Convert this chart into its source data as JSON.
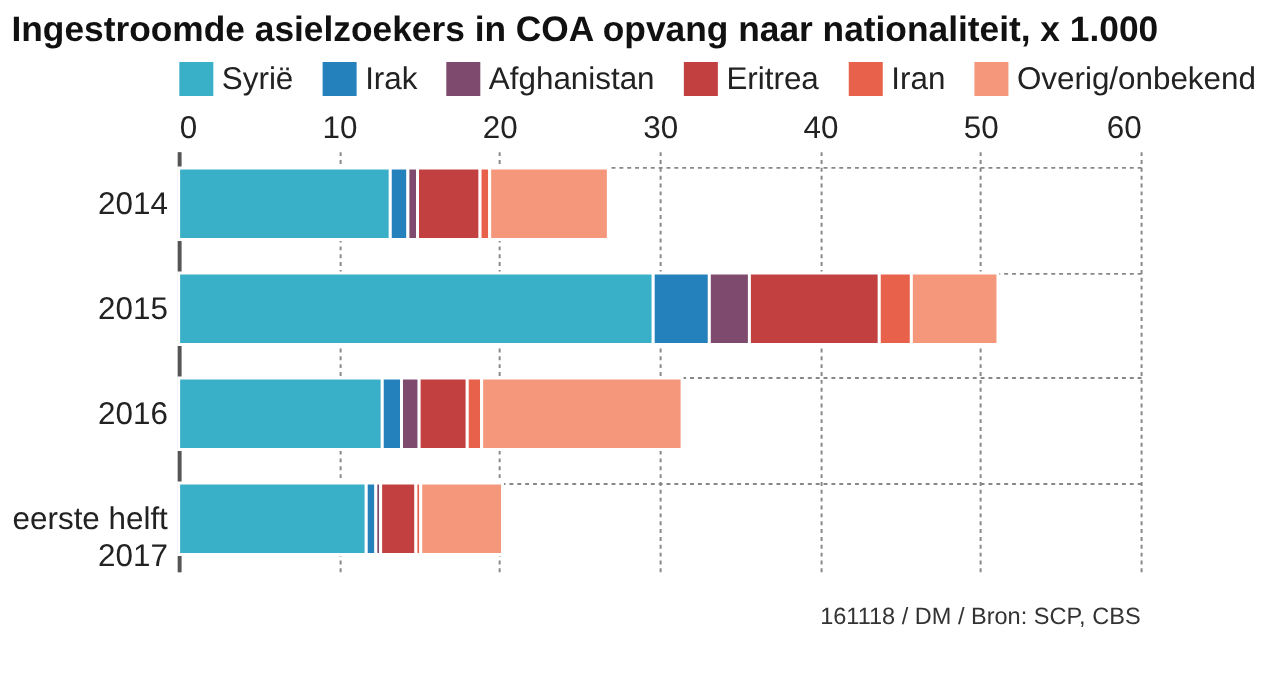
{
  "chart_data": {
    "type": "bar",
    "orientation": "horizontal",
    "stacked": true,
    "title": "Ingestroomde asielzoekers in COA opvang naar nationaliteit, x 1.000",
    "categories": [
      "2014",
      "2015",
      "2016",
      "eerste helft 2017"
    ],
    "series": [
      {
        "name": "Syrië",
        "color": "#3ab0c8",
        "values": [
          13.2,
          29.6,
          12.7,
          11.7
        ]
      },
      {
        "name": "Irak",
        "color": "#2581bb",
        "values": [
          1.1,
          3.5,
          1.2,
          0.6
        ]
      },
      {
        "name": "Afghanistan",
        "color": "#7e4a6e",
        "values": [
          0.6,
          2.5,
          1.1,
          0.3
        ]
      },
      {
        "name": "Eritrea",
        "color": "#c2403f",
        "values": [
          3.9,
          8.1,
          3.0,
          2.2
        ]
      },
      {
        "name": "Iran",
        "color": "#e8614a",
        "values": [
          0.6,
          2.0,
          0.9,
          0.3
        ]
      },
      {
        "name": "Overig/onbekend",
        "color": "#f4977a",
        "values": [
          7.4,
          5.4,
          12.5,
          5.1
        ]
      }
    ],
    "xlim": [
      0,
      60
    ],
    "xticks": [
      0,
      10,
      20,
      30,
      40,
      50,
      60
    ],
    "grid": true,
    "legend": "top",
    "annotations": [
      "161118 / DM / Bron: SCP, CBS"
    ]
  }
}
